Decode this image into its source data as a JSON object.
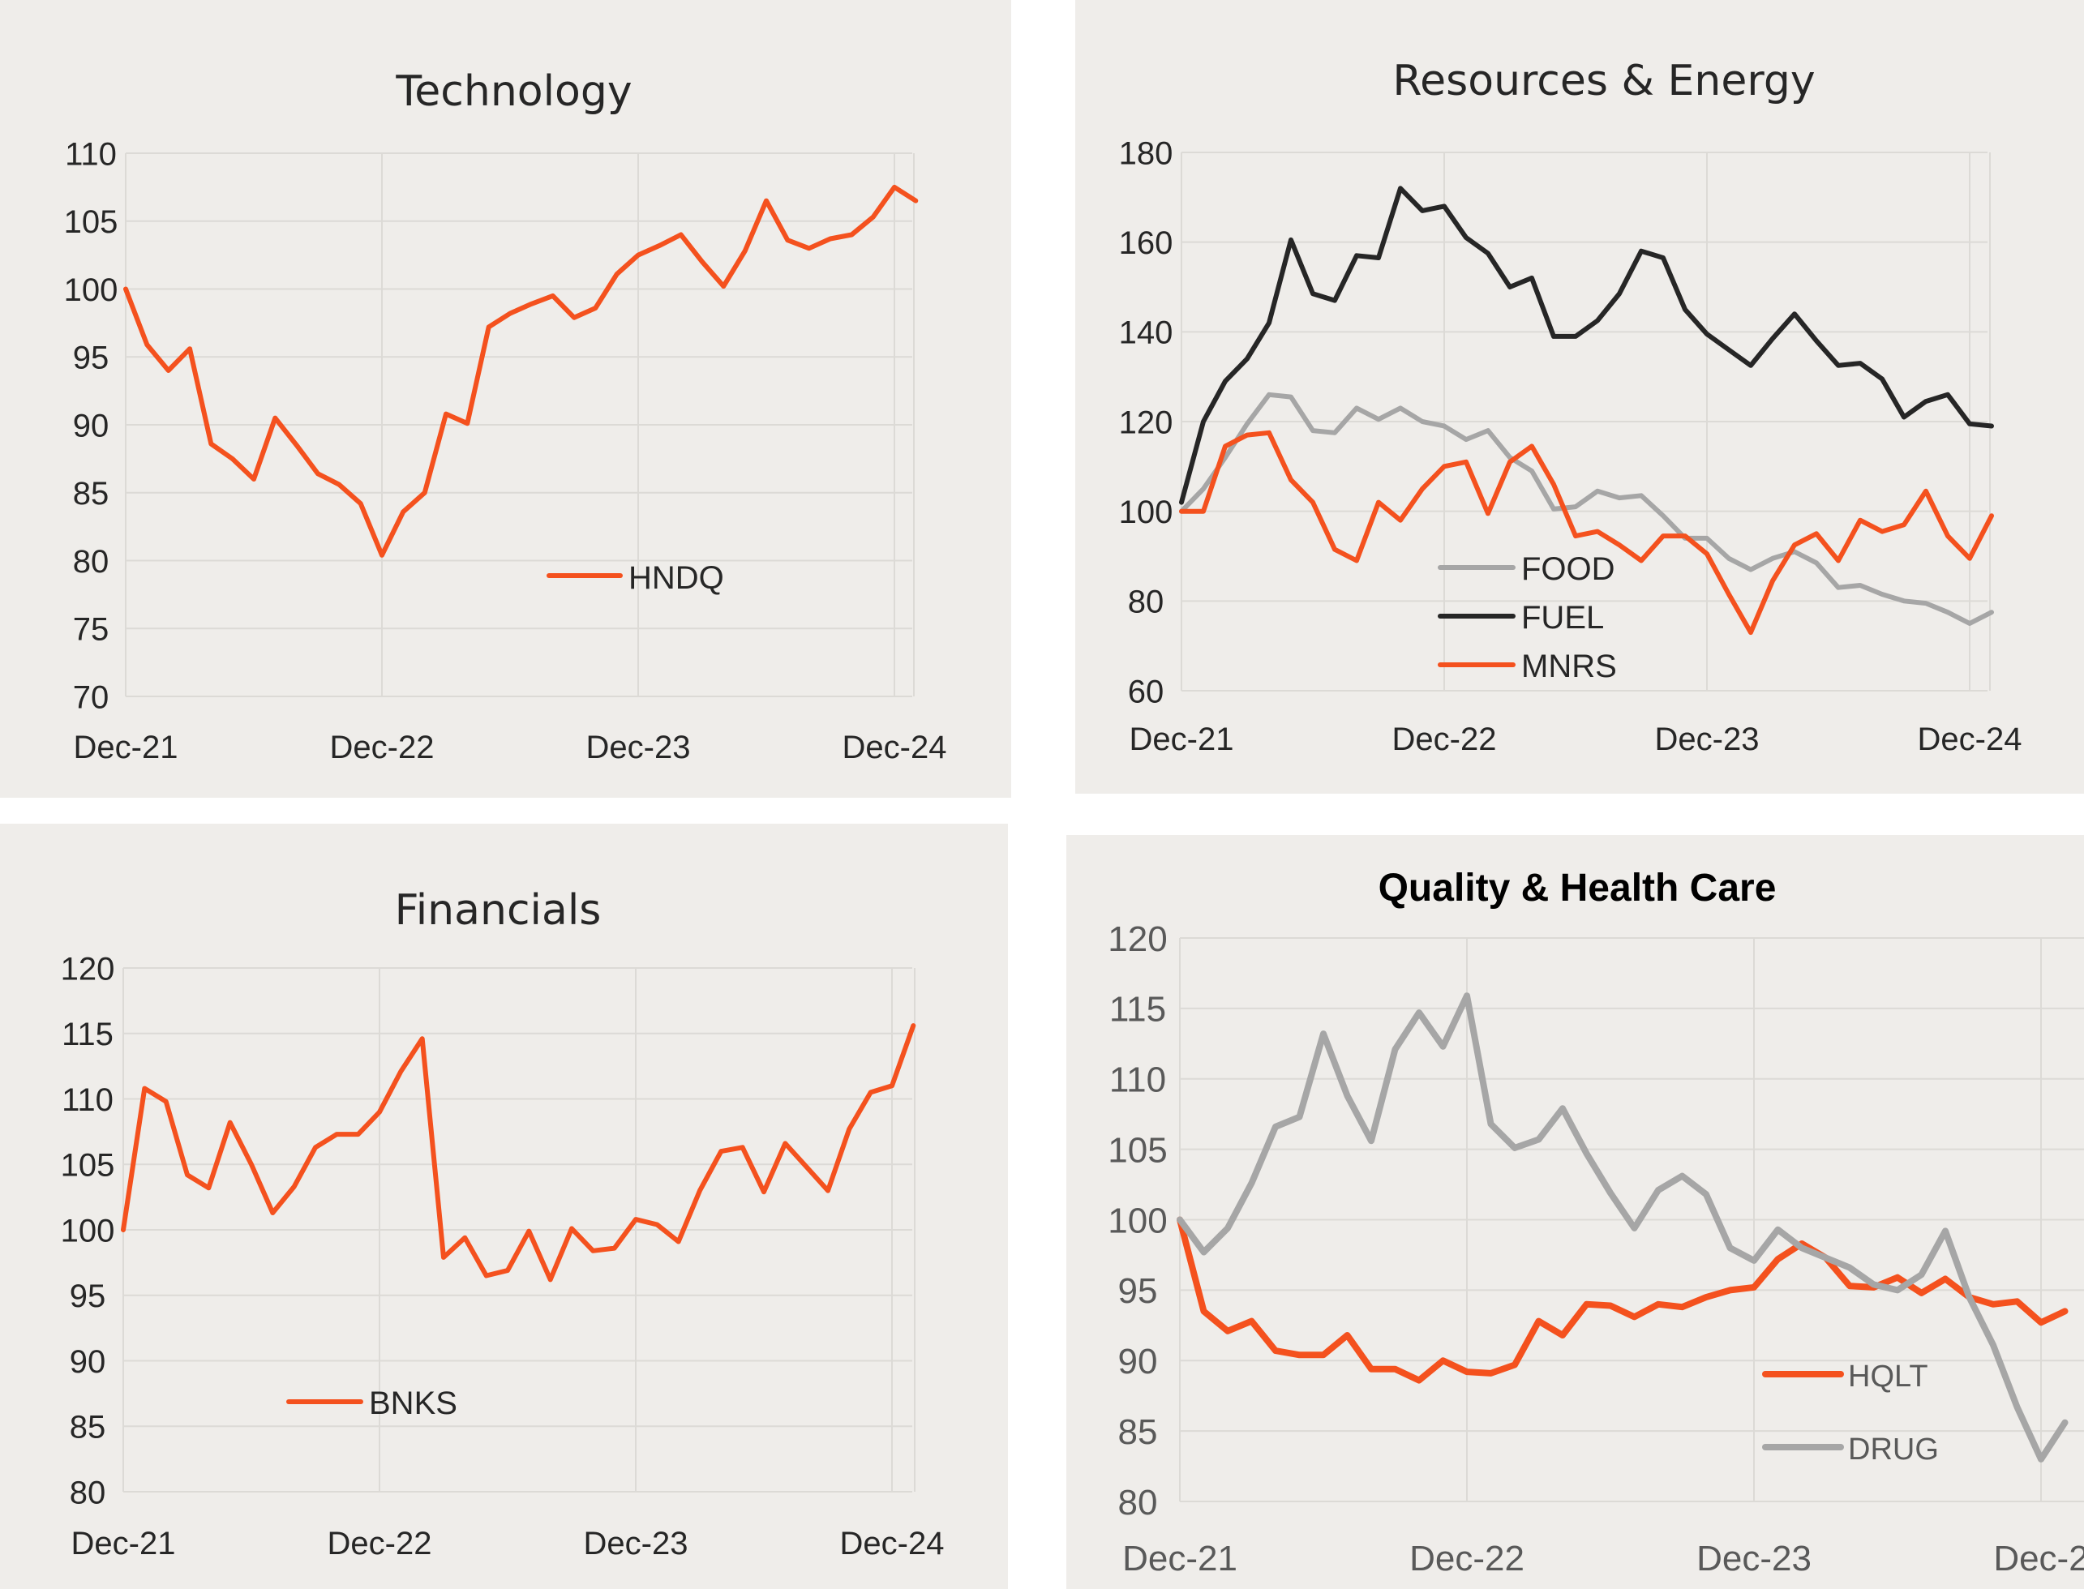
{
  "chart_data": [
    {
      "id": "tech",
      "type": "line",
      "title": "Technology",
      "ylim": [
        70,
        110
      ],
      "yticks": [
        70,
        75,
        80,
        85,
        90,
        95,
        100,
        105,
        110
      ],
      "xtick_labels": [
        "Dec-21",
        "Dec-22",
        "Dec-23",
        "Dec-24"
      ],
      "grid": true,
      "legend_position": "center",
      "colors": {
        "HNDQ": "#f4511e"
      },
      "series": [
        {
          "name": "HNDQ",
          "values": [
            100,
            95.9,
            94.0,
            95.6,
            88.6,
            87.5,
            86.0,
            90.5,
            88.5,
            86.4,
            85.6,
            84.2,
            80.4,
            83.6,
            85.0,
            90.8,
            90.1,
            97.2,
            98.2,
            98.9,
            99.5,
            97.9,
            98.6,
            101.1,
            102.5,
            103.2,
            104.0,
            102.0,
            100.2,
            102.8,
            106.5,
            103.6,
            103.0,
            103.7,
            104.0,
            105.3,
            107.5,
            106.5
          ]
        }
      ]
    },
    {
      "id": "resources",
      "type": "line",
      "title": "Resources & Energy",
      "ylim": [
        60,
        180
      ],
      "yticks": [
        60,
        80,
        100,
        120,
        140,
        160,
        180
      ],
      "xtick_labels": [
        "Dec-21",
        "Dec-22",
        "Dec-23",
        "Dec-24"
      ],
      "grid": true,
      "legend_position": "bottom-left",
      "colors": {
        "FOOD": "#a6a6a6",
        "FUEL": "#262626",
        "MNRS": "#f4511e"
      },
      "series": [
        {
          "name": "FOOD",
          "values": [
            100,
            105.0,
            112.0,
            119.5,
            126.0,
            125.5,
            118.0,
            117.5,
            123.0,
            120.5,
            123.0,
            120.0,
            119.0,
            116.0,
            118.0,
            112.0,
            109.0,
            100.5,
            101.0,
            104.5,
            103.0,
            103.5,
            99.0,
            94.0,
            94.0,
            89.5,
            87.0,
            89.5,
            91.0,
            88.5,
            83.0,
            83.5,
            81.5,
            80.0,
            79.5,
            77.5,
            75.0,
            77.5
          ]
        },
        {
          "name": "FUEL",
          "values": [
            102,
            120.0,
            129.0,
            134.0,
            142.0,
            160.5,
            148.5,
            147.0,
            157.0,
            156.5,
            172.0,
            167.0,
            168.0,
            161.0,
            157.5,
            150.0,
            152.0,
            139.0,
            139.0,
            142.5,
            148.5,
            158.0,
            156.5,
            145.0,
            139.5,
            136.0,
            132.5,
            138.5,
            144.0,
            138.0,
            132.5,
            133.0,
            129.5,
            121.0,
            124.5,
            126.0,
            119.5,
            119.0
          ]
        },
        {
          "name": "MNRS",
          "values": [
            100,
            100.0,
            114.5,
            117.0,
            117.5,
            107.0,
            102.0,
            91.5,
            89.0,
            102.0,
            98.0,
            105.0,
            110.0,
            111.0,
            99.5,
            111.0,
            114.5,
            106.0,
            94.5,
            95.5,
            92.5,
            89.0,
            94.5,
            94.5,
            90.5,
            81.5,
            73.0,
            84.5,
            92.5,
            95.0,
            89.0,
            98.0,
            95.5,
            97.0,
            104.5,
            94.5,
            89.5,
            99.0
          ]
        }
      ]
    },
    {
      "id": "financials",
      "type": "line",
      "title": "Financials",
      "ylim": [
        80,
        120
      ],
      "yticks": [
        80,
        85,
        90,
        95,
        100,
        105,
        110,
        115,
        120
      ],
      "xtick_labels": [
        "Dec-21",
        "Dec-22",
        "Dec-23",
        "Dec-24"
      ],
      "grid": true,
      "legend_position": "bottom-left",
      "colors": {
        "BNKS": "#f4511e"
      },
      "series": [
        {
          "name": "BNKS",
          "values": [
            100,
            110.8,
            109.8,
            104.2,
            103.2,
            108.2,
            105.0,
            101.3,
            103.3,
            106.3,
            107.3,
            107.3,
            109.0,
            112.1,
            114.6,
            97.9,
            99.4,
            96.5,
            96.9,
            99.9,
            96.2,
            100.1,
            98.4,
            98.6,
            100.8,
            100.4,
            99.1,
            103.0,
            106.0,
            106.3,
            102.9,
            106.6,
            104.8,
            103.0,
            107.7,
            110.5,
            111.0,
            115.6
          ]
        }
      ]
    },
    {
      "id": "quality",
      "type": "line",
      "title": "Quality & Health Care",
      "ylim": [
        80,
        120
      ],
      "yticks": [
        80,
        85,
        90,
        95,
        100,
        105,
        110,
        115,
        120
      ],
      "xtick_labels": [
        "Dec-21",
        "Dec-22",
        "Dec-23",
        "Dec-2"
      ],
      "grid": true,
      "legend_position": "bottom-right",
      "colors": {
        "HQLT": "#f4511e",
        "DRUG": "#a6a6a6"
      },
      "series": [
        {
          "name": "HQLT",
          "values": [
            100,
            93.5,
            92.1,
            92.8,
            90.7,
            90.4,
            90.4,
            91.8,
            89.4,
            89.4,
            88.6,
            90.0,
            89.2,
            89.1,
            89.7,
            92.8,
            91.8,
            94.0,
            93.9,
            93.1,
            94.0,
            93.8,
            94.5,
            95.0,
            95.2,
            97.2,
            98.3,
            97.3,
            95.3,
            95.2,
            95.9,
            94.8,
            95.8,
            94.5,
            94.0,
            94.2,
            92.7,
            93.5
          ]
        },
        {
          "name": "DRUG",
          "values": [
            100,
            97.7,
            99.4,
            102.6,
            106.6,
            107.3,
            113.2,
            108.8,
            105.6,
            112.1,
            114.7,
            112.3,
            115.9,
            106.8,
            105.1,
            105.7,
            107.9,
            104.7,
            101.9,
            99.4,
            102.1,
            103.1,
            101.8,
            98.0,
            97.1,
            99.3,
            98.0,
            97.3,
            96.6,
            95.4,
            95.0,
            96.1,
            99.2,
            94.5,
            91.1,
            86.7,
            83.0,
            85.6
          ]
        }
      ]
    }
  ]
}
